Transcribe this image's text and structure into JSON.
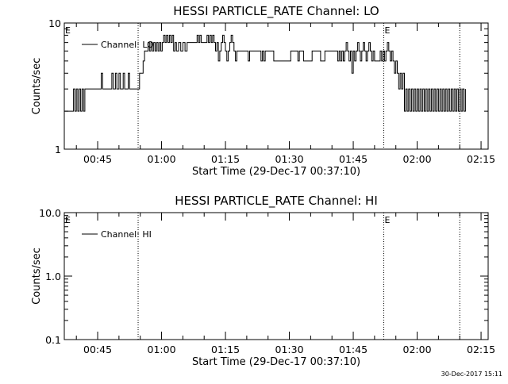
{
  "footer": {
    "timestamp": "30-Dec-2017 15:11"
  },
  "chart_data": [
    {
      "type": "line",
      "title": "HESSI PARTICLE_RATE Channel: LO",
      "xlabel": "Start Time (29-Dec-17 00:37:10)",
      "ylabel": "Counts/sec",
      "yscale": "log",
      "ylim": [
        1,
        10
      ],
      "y_ticks": [
        1,
        10
      ],
      "y_tick_labels": [
        "1",
        "10"
      ],
      "xlim": [
        "00:37:10",
        "02:16:40"
      ],
      "x_ticks": [
        "00:45",
        "01:00",
        "01:15",
        "01:30",
        "01:45",
        "02:00",
        "02:15"
      ],
      "markers": [
        {
          "time": "00:54:30",
          "label": ""
        },
        {
          "time": "01:52:10",
          "label": "E"
        },
        {
          "time": "02:10:00",
          "label": ""
        }
      ],
      "corner_label": "E",
      "legend": {
        "position": "top-left",
        "label": "Channel: LO"
      },
      "series": [
        {
          "name": "Channel: LO",
          "points": [
            [
              "00:37:10",
              2
            ],
            [
              "00:39:00",
              2
            ],
            [
              "00:39:20",
              3
            ],
            [
              "00:39:40",
              2
            ],
            [
              "00:40:00",
              3
            ],
            [
              "00:40:20",
              2
            ],
            [
              "00:40:40",
              3
            ],
            [
              "00:41:00",
              2
            ],
            [
              "00:41:20",
              3
            ],
            [
              "00:41:40",
              2
            ],
            [
              "00:42:00",
              3
            ],
            [
              "00:45:30",
              3
            ],
            [
              "00:45:50",
              4
            ],
            [
              "00:46:10",
              3
            ],
            [
              "00:48:00",
              3
            ],
            [
              "00:48:20",
              4
            ],
            [
              "00:48:40",
              3
            ],
            [
              "00:49:10",
              4
            ],
            [
              "00:49:30",
              3
            ],
            [
              "00:50:00",
              4
            ],
            [
              "00:50:20",
              3
            ],
            [
              "00:51:00",
              4
            ],
            [
              "00:51:20",
              3
            ],
            [
              "00:52:10",
              4
            ],
            [
              "00:52:30",
              3
            ],
            [
              "00:54:30",
              3
            ],
            [
              "00:54:50",
              4
            ],
            [
              "00:55:20",
              4
            ],
            [
              "00:55:40",
              5
            ],
            [
              "00:56:00",
              6
            ],
            [
              "00:56:30",
              6
            ],
            [
              "00:56:50",
              7
            ],
            [
              "00:57:10",
              6
            ],
            [
              "00:57:30",
              7
            ],
            [
              "00:57:50",
              6
            ],
            [
              "00:58:10",
              7
            ],
            [
              "00:58:30",
              6
            ],
            [
              "00:58:50",
              7
            ],
            [
              "00:59:10",
              6
            ],
            [
              "00:59:30",
              7
            ],
            [
              "00:59:50",
              6
            ],
            [
              "01:00:10",
              7
            ],
            [
              "01:00:30",
              8
            ],
            [
              "01:00:50",
              7
            ],
            [
              "01:01:10",
              8
            ],
            [
              "01:01:30",
              7
            ],
            [
              "01:01:50",
              8
            ],
            [
              "01:02:10",
              7
            ],
            [
              "01:02:30",
              8
            ],
            [
              "01:02:50",
              6
            ],
            [
              "01:03:10",
              7
            ],
            [
              "01:03:30",
              6
            ],
            [
              "01:04:00",
              7
            ],
            [
              "01:04:30",
              6
            ],
            [
              "01:05:00",
              7
            ],
            [
              "01:05:30",
              6
            ],
            [
              "01:06:00",
              7
            ],
            [
              "01:08:00",
              7
            ],
            [
              "01:08:20",
              8
            ],
            [
              "01:08:40",
              7
            ],
            [
              "01:09:00",
              8
            ],
            [
              "01:09:20",
              7
            ],
            [
              "01:10:20",
              7
            ],
            [
              "01:10:40",
              8
            ],
            [
              "01:11:00",
              7
            ],
            [
              "01:11:20",
              8
            ],
            [
              "01:11:40",
              7
            ],
            [
              "01:12:00",
              8
            ],
            [
              "01:12:20",
              7
            ],
            [
              "01:12:40",
              6
            ],
            [
              "01:13:00",
              7
            ],
            [
              "01:13:20",
              5
            ],
            [
              "01:13:40",
              6
            ],
            [
              "01:14:00",
              7
            ],
            [
              "01:14:20",
              8
            ],
            [
              "01:14:40",
              7
            ],
            [
              "01:15:00",
              6
            ],
            [
              "01:15:20",
              5
            ],
            [
              "01:15:40",
              6
            ],
            [
              "01:16:00",
              7
            ],
            [
              "01:16:20",
              8
            ],
            [
              "01:16:40",
              7
            ],
            [
              "01:17:00",
              6
            ],
            [
              "01:17:20",
              5
            ],
            [
              "01:17:40",
              6
            ],
            [
              "01:20:00",
              6
            ],
            [
              "01:20:20",
              5
            ],
            [
              "01:20:40",
              6
            ],
            [
              "01:23:00",
              6
            ],
            [
              "01:23:20",
              5
            ],
            [
              "01:23:40",
              6
            ],
            [
              "01:24:00",
              5
            ],
            [
              "01:24:20",
              6
            ],
            [
              "01:26:00",
              6
            ],
            [
              "01:26:20",
              5
            ],
            [
              "01:30:00",
              5
            ],
            [
              "01:30:20",
              6
            ],
            [
              "01:31:40",
              6
            ],
            [
              "01:32:00",
              5
            ],
            [
              "01:32:20",
              6
            ],
            [
              "01:33:00",
              6
            ],
            [
              "01:33:20",
              5
            ],
            [
              "01:35:00",
              5
            ],
            [
              "01:35:20",
              6
            ],
            [
              "01:37:00",
              6
            ],
            [
              "01:37:20",
              5
            ],
            [
              "01:38:00",
              5
            ],
            [
              "01:38:20",
              6
            ],
            [
              "01:41:00",
              6
            ],
            [
              "01:41:20",
              5
            ],
            [
              "01:41:40",
              6
            ],
            [
              "01:42:00",
              5
            ],
            [
              "01:42:20",
              6
            ],
            [
              "01:42:40",
              5
            ],
            [
              "01:43:00",
              6
            ],
            [
              "01:43:20",
              7
            ],
            [
              "01:43:40",
              6
            ],
            [
              "01:44:00",
              5
            ],
            [
              "01:44:20",
              6
            ],
            [
              "01:44:40",
              4
            ],
            [
              "01:45:00",
              6
            ],
            [
              "01:45:20",
              5
            ],
            [
              "01:45:40",
              6
            ],
            [
              "01:46:00",
              7
            ],
            [
              "01:46:20",
              6
            ],
            [
              "01:46:40",
              5
            ],
            [
              "01:47:00",
              6
            ],
            [
              "01:47:20",
              7
            ],
            [
              "01:47:40",
              6
            ],
            [
              "01:48:00",
              5
            ],
            [
              "01:48:20",
              6
            ],
            [
              "01:48:40",
              7
            ],
            [
              "01:49:00",
              6
            ],
            [
              "01:49:20",
              5
            ],
            [
              "01:49:40",
              6
            ],
            [
              "01:50:00",
              5
            ],
            [
              "01:51:00",
              5
            ],
            [
              "01:51:20",
              6
            ],
            [
              "01:51:40",
              5
            ],
            [
              "01:52:00",
              6
            ],
            [
              "01:52:20",
              5
            ],
            [
              "01:52:40",
              6
            ],
            [
              "01:53:00",
              7
            ],
            [
              "01:53:20",
              6
            ],
            [
              "01:53:40",
              5
            ],
            [
              "01:54:00",
              6
            ],
            [
              "01:54:20",
              5
            ],
            [
              "01:54:40",
              4
            ],
            [
              "01:55:00",
              5
            ],
            [
              "01:55:20",
              4
            ],
            [
              "01:55:40",
              3
            ],
            [
              "01:56:00",
              4
            ],
            [
              "01:56:20",
              3
            ],
            [
              "01:56:40",
              4
            ],
            [
              "01:57:00",
              2
            ],
            [
              "01:57:20",
              3
            ],
            [
              "01:57:40",
              2
            ],
            [
              "01:58:00",
              3
            ],
            [
              "01:58:20",
              2
            ],
            [
              "01:58:40",
              3
            ],
            [
              "01:59:00",
              2
            ],
            [
              "01:59:20",
              3
            ],
            [
              "01:59:40",
              2
            ],
            [
              "02:00:00",
              3
            ],
            [
              "02:00:20",
              2
            ],
            [
              "02:00:40",
              3
            ],
            [
              "02:01:00",
              2
            ],
            [
              "02:01:20",
              3
            ],
            [
              "02:01:40",
              2
            ],
            [
              "02:02:00",
              3
            ],
            [
              "02:02:20",
              2
            ],
            [
              "02:02:40",
              3
            ],
            [
              "02:03:00",
              2
            ],
            [
              "02:03:20",
              3
            ],
            [
              "02:03:40",
              2
            ],
            [
              "02:04:00",
              3
            ],
            [
              "02:04:20",
              2
            ],
            [
              "02:04:40",
              3
            ],
            [
              "02:05:00",
              2
            ],
            [
              "02:05:20",
              3
            ],
            [
              "02:05:40",
              2
            ],
            [
              "02:06:00",
              3
            ],
            [
              "02:06:20",
              2
            ],
            [
              "02:06:40",
              3
            ],
            [
              "02:07:00",
              2
            ],
            [
              "02:07:20",
              3
            ],
            [
              "02:07:40",
              2
            ],
            [
              "02:08:00",
              3
            ],
            [
              "02:08:20",
              2
            ],
            [
              "02:08:40",
              3
            ],
            [
              "02:09:00",
              2
            ],
            [
              "02:09:20",
              3
            ],
            [
              "02:09:40",
              2
            ],
            [
              "02:10:00",
              3
            ],
            [
              "02:10:20",
              2
            ],
            [
              "02:10:40",
              3
            ],
            [
              "02:11:00",
              2
            ],
            [
              "02:11:20",
              3
            ]
          ]
        }
      ]
    },
    {
      "type": "line",
      "title": "HESSI PARTICLE_RATE Channel: HI",
      "xlabel": "Start Time (29-Dec-17 00:37:10)",
      "ylabel": "Counts/sec",
      "yscale": "log",
      "ylim": [
        0.1,
        10
      ],
      "y_ticks": [
        0.1,
        1,
        10
      ],
      "y_tick_labels": [
        "0.1",
        "1.0",
        "10.0"
      ],
      "xlim": [
        "00:37:10",
        "02:16:40"
      ],
      "x_ticks": [
        "00:45",
        "01:00",
        "01:15",
        "01:30",
        "01:45",
        "02:00",
        "02:15"
      ],
      "markers": [
        {
          "time": "00:54:30",
          "label": ""
        },
        {
          "time": "01:52:10",
          "label": "E"
        },
        {
          "time": "02:10:00",
          "label": ""
        }
      ],
      "corner_label": "E",
      "legend": {
        "position": "top-left",
        "label": "Channel: HI"
      },
      "series": [
        {
          "name": "Channel: HI",
          "points": []
        }
      ]
    }
  ]
}
